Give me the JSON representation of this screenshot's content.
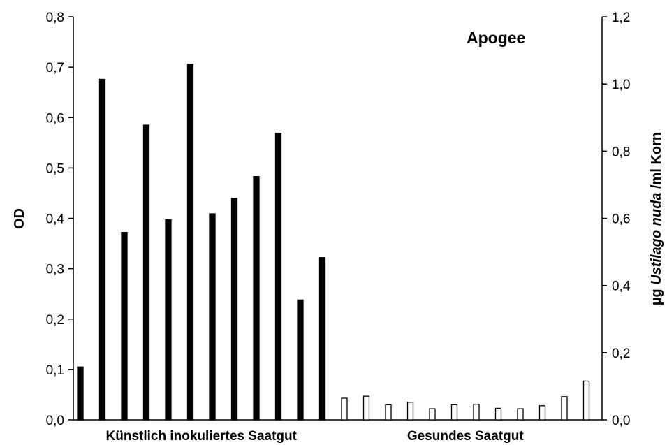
{
  "chart_data": {
    "type": "bar",
    "title": "Apogee",
    "ylabel": "OD",
    "ylabel_right": {
      "prefix": "µg ",
      "italic": "Ustilago nuda",
      "suffix": " /ml Korn"
    },
    "ylim": [
      0,
      0.8
    ],
    "ylim_right": [
      0,
      1.2
    ],
    "yticks": [
      "0,0",
      "0,1",
      "0,2",
      "0,3",
      "0,4",
      "0,5",
      "0,6",
      "0,7",
      "0,8"
    ],
    "yticks_right": [
      "0,0",
      "0,2",
      "0,4",
      "0,6",
      "0,8",
      "1,0",
      "1,2"
    ],
    "groups": [
      {
        "label": "Künstlich inokuliertes Saatgut",
        "fill": "#000000",
        "values": [
          0.105,
          0.676,
          0.372,
          0.585,
          0.397,
          0.706,
          0.409,
          0.44,
          0.483,
          0.569,
          0.238,
          0.322
        ]
      },
      {
        "label": "Gesundes Saatgut",
        "fill": "#ffffff",
        "values": [
          0.043,
          0.047,
          0.03,
          0.035,
          0.022,
          0.03,
          0.031,
          0.023,
          0.022,
          0.028,
          0.046,
          0.077
        ]
      }
    ],
    "grid": false,
    "legend": "none"
  }
}
